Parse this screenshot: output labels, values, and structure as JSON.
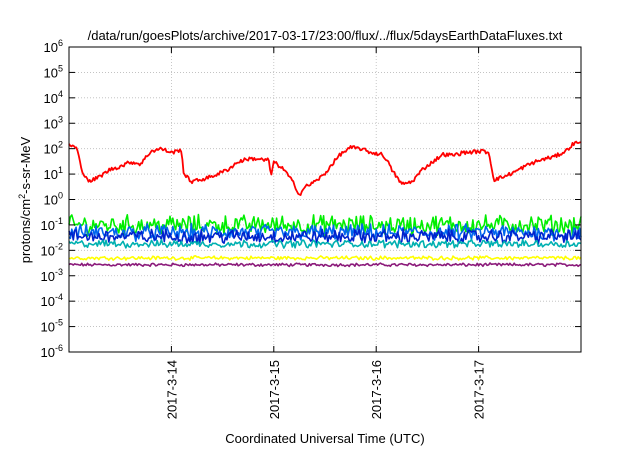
{
  "chart_data": {
    "type": "line",
    "title": "/data/run/goesPlots/archive/2017-03-17/23:00/flux/../flux/5daysEarthDataFluxes.txt",
    "xlabel": "Coordinated Universal Time (UTC)",
    "ylabel_main": "protons/cm",
    "ylabel_sup": "2",
    "ylabel_rest": "-s-sr-MeV",
    "y_scale": "log",
    "ylim": [
      1e-06,
      1000000.0
    ],
    "y_ticks": [
      {
        "base": "10",
        "exp": "-6",
        "value": -6
      },
      {
        "base": "10",
        "exp": "-5",
        "value": -5
      },
      {
        "base": "10",
        "exp": "-4",
        "value": -4
      },
      {
        "base": "10",
        "exp": "-3",
        "value": -3
      },
      {
        "base": "10",
        "exp": "-2",
        "value": -2
      },
      {
        "base": "10",
        "exp": "-1",
        "value": -1
      },
      {
        "base": "10",
        "exp": "0",
        "value": 0
      },
      {
        "base": "10",
        "exp": "1",
        "value": 1
      },
      {
        "base": "10",
        "exp": "2",
        "value": 2
      },
      {
        "base": "10",
        "exp": "3",
        "value": 3
      },
      {
        "base": "10",
        "exp": "4",
        "value": 4
      },
      {
        "base": "10",
        "exp": "5",
        "value": 5
      },
      {
        "base": "10",
        "exp": "6",
        "value": 6
      }
    ],
    "xlim_days": [
      0,
      5
    ],
    "x_ticks": [
      {
        "label": "2017-3-14",
        "day": 1
      },
      {
        "label": "2017-3-15",
        "day": 2
      },
      {
        "label": "2017-3-16",
        "day": 3
      },
      {
        "label": "2017-3-17",
        "day": 4
      }
    ],
    "grid": true,
    "legend": "none",
    "series": [
      {
        "color": "#ff0000",
        "noise": 0.15,
        "points": [
          [
            0.0,
            150
          ],
          [
            0.08,
            100
          ],
          [
            0.12,
            15
          ],
          [
            0.2,
            5
          ],
          [
            0.3,
            8
          ],
          [
            0.4,
            15
          ],
          [
            0.5,
            20
          ],
          [
            0.6,
            30
          ],
          [
            0.7,
            25
          ],
          [
            0.8,
            80
          ],
          [
            0.9,
            100
          ],
          [
            1.0,
            70
          ],
          [
            1.1,
            90
          ],
          [
            1.12,
            10
          ],
          [
            1.2,
            5
          ],
          [
            1.35,
            7
          ],
          [
            1.45,
            10
          ],
          [
            1.55,
            15
          ],
          [
            1.65,
            30
          ],
          [
            1.75,
            40
          ],
          [
            1.85,
            40
          ],
          [
            1.9,
            35
          ],
          [
            1.95,
            38
          ],
          [
            1.97,
            8
          ],
          [
            2.0,
            30
          ],
          [
            2.1,
            15
          ],
          [
            2.2,
            4
          ],
          [
            2.25,
            1.5
          ],
          [
            2.3,
            3
          ],
          [
            2.4,
            5
          ],
          [
            2.5,
            10
          ],
          [
            2.55,
            20
          ],
          [
            2.65,
            60
          ],
          [
            2.75,
            110
          ],
          [
            2.85,
            100
          ],
          [
            2.95,
            70
          ],
          [
            3.05,
            60
          ],
          [
            3.1,
            40
          ],
          [
            3.15,
            15
          ],
          [
            3.25,
            4
          ],
          [
            3.35,
            5
          ],
          [
            3.45,
            15
          ],
          [
            3.55,
            30
          ],
          [
            3.65,
            60
          ],
          [
            3.75,
            55
          ],
          [
            3.85,
            70
          ],
          [
            3.95,
            75
          ],
          [
            4.05,
            80
          ],
          [
            4.1,
            70
          ],
          [
            4.15,
            6
          ],
          [
            4.25,
            8
          ],
          [
            4.35,
            12
          ],
          [
            4.45,
            20
          ],
          [
            4.55,
            30
          ],
          [
            4.65,
            40
          ],
          [
            4.75,
            50
          ],
          [
            4.85,
            80
          ],
          [
            4.92,
            150
          ],
          [
            5.0,
            200
          ]
        ]
      },
      {
        "color": "#00ee00",
        "base": 0.1,
        "noise": 0.3
      },
      {
        "color": "#0066ee",
        "base": 0.05,
        "noise": 0.25
      },
      {
        "color": "#0022cc",
        "base": 0.035,
        "noise": 0.22
      },
      {
        "color": "#00b0b0",
        "base": 0.018,
        "noise": 0.12
      },
      {
        "color": "#ffff00",
        "base": 0.005,
        "noise": 0.06
      },
      {
        "color": "#8b1a7a",
        "base": 0.0027,
        "noise": 0.05
      }
    ]
  }
}
